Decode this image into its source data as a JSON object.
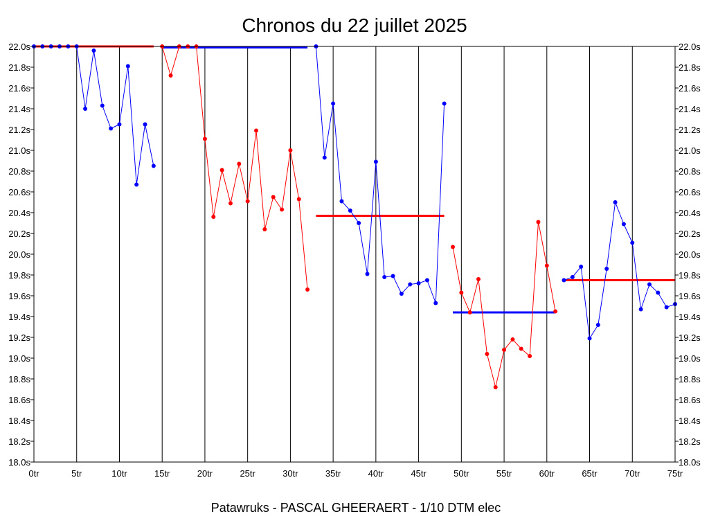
{
  "chart_data": {
    "type": "line",
    "title": "Chronos du 22 juillet 2025",
    "footer": "Patawruks - PASCAL GHEERAERT - 1/10 DTM elec",
    "x_tick_values": [
      0,
      5,
      10,
      15,
      20,
      25,
      30,
      35,
      40,
      45,
      50,
      55,
      60,
      65,
      70,
      75
    ],
    "x_tick_suffix": "tr",
    "xlim": [
      0,
      75
    ],
    "y_tick_values": [
      18.0,
      18.2,
      18.4,
      18.6,
      18.8,
      19.0,
      19.2,
      19.4,
      19.6,
      19.8,
      20.0,
      20.2,
      20.4,
      20.6,
      20.8,
      21.0,
      21.2,
      21.4,
      21.6,
      21.8,
      22.0
    ],
    "y_tick_suffix": "s",
    "ylim": [
      18.0,
      22.0
    ],
    "grid": "vertical",
    "colors": {
      "blue": "#0000ff",
      "red": "#ff0000",
      "frame": "#000000",
      "grid": "#000000"
    },
    "series": [
      {
        "color": "blue",
        "x": [
          0,
          1,
          2,
          3,
          4,
          5,
          6,
          7,
          8,
          9,
          10,
          11,
          12,
          13,
          14
        ],
        "y": [
          22.0,
          22.0,
          22.0,
          22.0,
          22.0,
          22.0,
          21.4,
          21.96,
          21.43,
          21.21,
          21.25,
          21.81,
          20.67,
          21.25,
          20.85
        ]
      },
      {
        "color": "red",
        "x": [
          15,
          16,
          17,
          18,
          19,
          20,
          21,
          22,
          23,
          24,
          25,
          26,
          27,
          28,
          29,
          30,
          31,
          32
        ],
        "y": [
          22.0,
          21.72,
          22.0,
          22.0,
          22.0,
          21.11,
          20.36,
          20.81,
          20.49,
          20.87,
          20.51,
          21.19,
          20.24,
          20.55,
          20.43,
          21.0,
          20.53,
          19.66
        ]
      },
      {
        "color": "blue",
        "x": [
          33,
          34,
          35,
          36,
          37,
          38,
          39,
          40,
          41,
          42,
          43,
          44,
          45,
          46,
          47,
          48
        ],
        "y": [
          22.0,
          20.93,
          21.45,
          20.51,
          20.42,
          20.3,
          19.81,
          20.89,
          19.78,
          19.79,
          19.62,
          19.71,
          19.72,
          19.75,
          19.53,
          21.45
        ]
      },
      {
        "color": "red",
        "x": [
          49,
          50,
          51,
          52,
          53,
          54,
          55,
          56,
          57,
          58,
          59,
          60,
          61
        ],
        "y": [
          20.07,
          19.63,
          19.44,
          19.76,
          19.04,
          18.72,
          19.08,
          19.18,
          19.09,
          19.02,
          20.31,
          19.89,
          19.45
        ]
      },
      {
        "color": "blue",
        "x": [
          62,
          63,
          64,
          65,
          66,
          67,
          68,
          69,
          70,
          71,
          72,
          73,
          74,
          75
        ],
        "y": [
          19.75,
          19.78,
          19.88,
          19.19,
          19.32,
          19.86,
          20.5,
          20.29,
          20.11,
          19.47,
          19.71,
          19.63,
          19.49,
          19.52
        ]
      }
    ],
    "reference_lines": [
      {
        "color": "red",
        "x": [
          0,
          14
        ],
        "y": 22.0
      },
      {
        "color": "blue",
        "x": [
          15,
          32
        ],
        "y": 21.99
      },
      {
        "color": "red",
        "x": [
          33,
          48
        ],
        "y": 20.37
      },
      {
        "color": "blue",
        "x": [
          49,
          61
        ],
        "y": 19.44
      },
      {
        "color": "red",
        "x": [
          62,
          75
        ],
        "y": 19.75
      }
    ]
  }
}
